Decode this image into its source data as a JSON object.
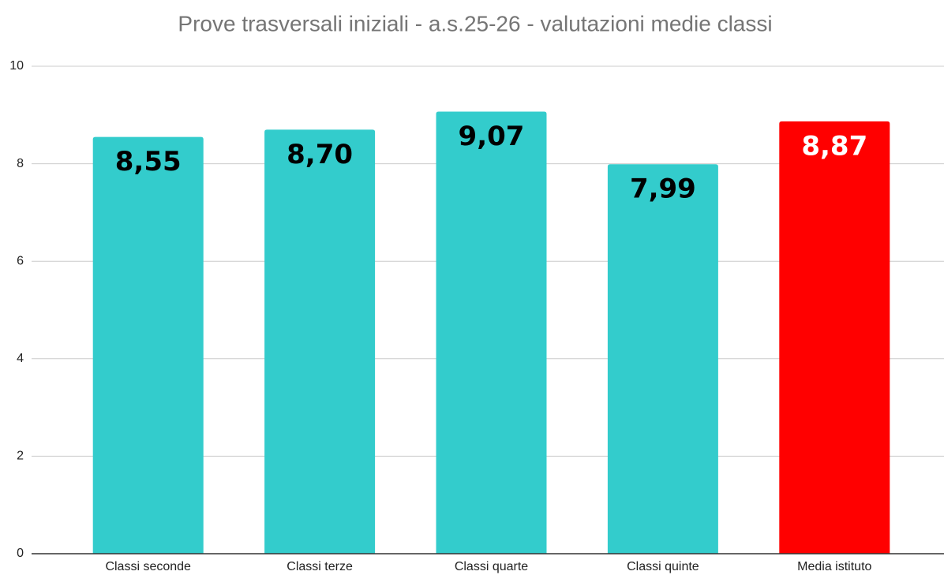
{
  "chart_data": {
    "type": "bar",
    "title": "Prove trasversali iniziali - a.s.25-26 - valutazioni medie classi",
    "categories": [
      "Classi seconde",
      "Classi terze",
      "Classi quarte",
      "Classi quinte",
      "Media istituto"
    ],
    "values": [
      8.55,
      8.7,
      9.07,
      7.99,
      8.87
    ],
    "value_labels": [
      "8,55",
      "8,70",
      "9,07",
      "7,99",
      "8,87"
    ],
    "colors": [
      "#33cccc",
      "#33cccc",
      "#33cccc",
      "#33cccc",
      "#ff0000"
    ],
    "label_colors": [
      "#000000",
      "#000000",
      "#000000",
      "#000000",
      "#ffffff"
    ],
    "ylim": [
      0,
      10
    ],
    "yticks": [
      0,
      2,
      4,
      6,
      8,
      10
    ],
    "grid": true
  }
}
